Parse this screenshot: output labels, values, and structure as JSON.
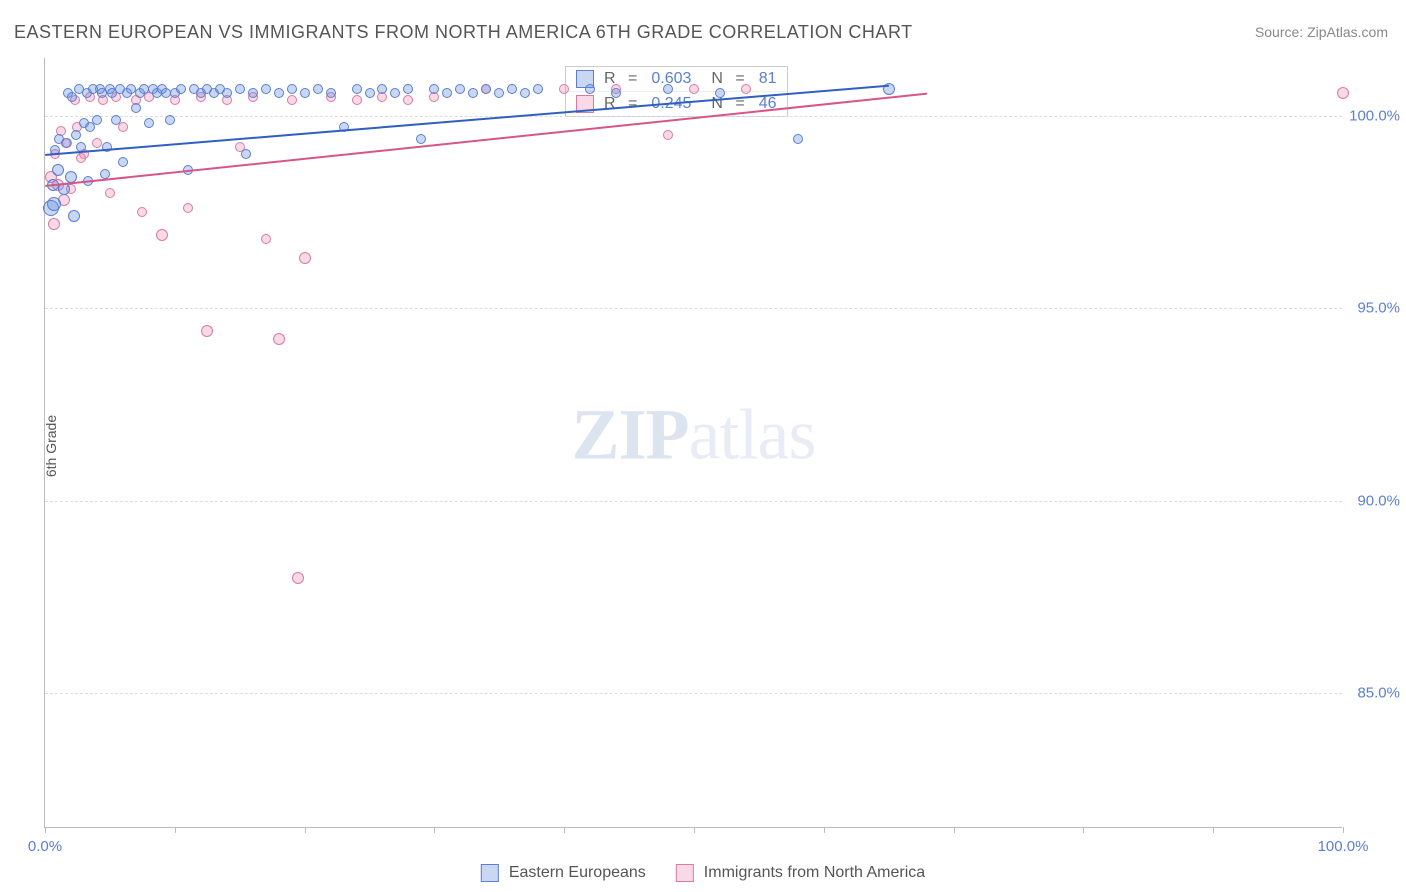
{
  "title": "EASTERN EUROPEAN VS IMMIGRANTS FROM NORTH AMERICA 6TH GRADE CORRELATION CHART",
  "source": "Source: ZipAtlas.com",
  "ylabel": "6th Grade",
  "watermark": {
    "bold": "ZIP",
    "thin": "atlas"
  },
  "xlim": [
    0,
    100
  ],
  "ylim": [
    81.5,
    101.5
  ],
  "yticks": [
    {
      "v": 100,
      "label": "100.0%"
    },
    {
      "v": 95,
      "label": "95.0%"
    },
    {
      "v": 90,
      "label": "90.0%"
    },
    {
      "v": 85,
      "label": "85.0%"
    }
  ],
  "xticks_major": [
    0,
    100
  ],
  "xticks_minor": [
    10,
    20,
    30,
    40,
    50,
    60,
    70,
    80,
    90
  ],
  "xtick_labels": {
    "0": "0.0%",
    "100": "100.0%"
  },
  "series": [
    {
      "id": "eastern-europeans",
      "label": "Eastern Europeans",
      "fill": "rgba(100,140,220,0.35)",
      "stroke": "#5b7fd1",
      "line_color": "#2f5fc4",
      "R": "0.603",
      "N": "81",
      "trend": {
        "x1": 0,
        "y1": 99.0,
        "x2": 65,
        "y2": 100.8
      },
      "points": [
        [
          0.5,
          97.6,
          16
        ],
        [
          0.6,
          98.2,
          12
        ],
        [
          0.7,
          97.7,
          14
        ],
        [
          0.8,
          99.1,
          10
        ],
        [
          1.0,
          98.6,
          12
        ],
        [
          1.1,
          99.4,
          10
        ],
        [
          1.5,
          98.1,
          12
        ],
        [
          1.6,
          99.3,
          10
        ],
        [
          1.8,
          100.6,
          10
        ],
        [
          2.0,
          98.4,
          12
        ],
        [
          2.1,
          100.5,
          10
        ],
        [
          2.2,
          97.4,
          12
        ],
        [
          2.4,
          99.5,
          10
        ],
        [
          2.6,
          100.7,
          10
        ],
        [
          2.8,
          99.2,
          10
        ],
        [
          3.0,
          99.8,
          10
        ],
        [
          3.2,
          100.6,
          10
        ],
        [
          3.3,
          98.3,
          10
        ],
        [
          3.5,
          99.7,
          10
        ],
        [
          3.7,
          100.7,
          10
        ],
        [
          4.0,
          99.9,
          10
        ],
        [
          4.2,
          100.7,
          10
        ],
        [
          4.4,
          100.6,
          10
        ],
        [
          4.6,
          98.5,
          10
        ],
        [
          4.8,
          99.2,
          10
        ],
        [
          5.0,
          100.7,
          10
        ],
        [
          5.2,
          100.6,
          10
        ],
        [
          5.5,
          99.9,
          10
        ],
        [
          5.8,
          100.7,
          10
        ],
        [
          6.0,
          98.8,
          10
        ],
        [
          6.3,
          100.6,
          10
        ],
        [
          6.6,
          100.7,
          10
        ],
        [
          7.0,
          100.2,
          10
        ],
        [
          7.3,
          100.6,
          10
        ],
        [
          7.6,
          100.7,
          10
        ],
        [
          8.0,
          99.8,
          10
        ],
        [
          8.3,
          100.7,
          10
        ],
        [
          8.6,
          100.6,
          10
        ],
        [
          9.0,
          100.7,
          10
        ],
        [
          9.3,
          100.6,
          10
        ],
        [
          9.6,
          99.9,
          10
        ],
        [
          10.0,
          100.6,
          10
        ],
        [
          10.5,
          100.7,
          10
        ],
        [
          11.0,
          98.6,
          10
        ],
        [
          11.5,
          100.7,
          10
        ],
        [
          12.0,
          100.6,
          10
        ],
        [
          12.5,
          100.7,
          10
        ],
        [
          13.0,
          100.6,
          10
        ],
        [
          13.5,
          100.7,
          10
        ],
        [
          14.0,
          100.6,
          10
        ],
        [
          15.0,
          100.7,
          10
        ],
        [
          15.5,
          99.0,
          10
        ],
        [
          16.0,
          100.6,
          10
        ],
        [
          17.0,
          100.7,
          10
        ],
        [
          18.0,
          100.6,
          10
        ],
        [
          19.0,
          100.7,
          10
        ],
        [
          20.0,
          100.6,
          10
        ],
        [
          21.0,
          100.7,
          10
        ],
        [
          22.0,
          100.6,
          10
        ],
        [
          23.0,
          99.7,
          10
        ],
        [
          24.0,
          100.7,
          10
        ],
        [
          25.0,
          100.6,
          10
        ],
        [
          26.0,
          100.7,
          10
        ],
        [
          27.0,
          100.6,
          10
        ],
        [
          28.0,
          100.7,
          10
        ],
        [
          29.0,
          99.4,
          10
        ],
        [
          30.0,
          100.7,
          10
        ],
        [
          31.0,
          100.6,
          10
        ],
        [
          32.0,
          100.7,
          10
        ],
        [
          33.0,
          100.6,
          10
        ],
        [
          34.0,
          100.7,
          10
        ],
        [
          35.0,
          100.6,
          10
        ],
        [
          36.0,
          100.7,
          10
        ],
        [
          37.0,
          100.6,
          10
        ],
        [
          38.0,
          100.7,
          10
        ],
        [
          42.0,
          100.7,
          10
        ],
        [
          44.0,
          100.6,
          10
        ],
        [
          48.0,
          100.7,
          10
        ],
        [
          52.0,
          100.6,
          10
        ],
        [
          58.0,
          99.4,
          10
        ],
        [
          65.0,
          100.7,
          12
        ]
      ]
    },
    {
      "id": "immigrants-north-america",
      "label": "Immigrants from North America",
      "fill": "rgba(235,130,170,0.3)",
      "stroke": "#d87ba3",
      "line_color": "#d85588",
      "R": "0.245",
      "N": "46",
      "trend": {
        "x1": 0,
        "y1": 98.2,
        "x2": 68,
        "y2": 100.6
      },
      "points": [
        [
          0.5,
          98.4,
          12
        ],
        [
          0.7,
          97.2,
          12
        ],
        [
          0.8,
          99.0,
          10
        ],
        [
          1.0,
          98.2,
          12
        ],
        [
          1.2,
          99.6,
          10
        ],
        [
          1.5,
          97.8,
          12
        ],
        [
          1.7,
          99.3,
          10
        ],
        [
          2.0,
          98.1,
          10
        ],
        [
          2.3,
          100.4,
          10
        ],
        [
          2.5,
          99.7,
          10
        ],
        [
          2.8,
          98.9,
          10
        ],
        [
          3.0,
          99.0,
          10
        ],
        [
          3.5,
          100.5,
          10
        ],
        [
          4.0,
          99.3,
          10
        ],
        [
          4.5,
          100.4,
          10
        ],
        [
          5.0,
          98.0,
          10
        ],
        [
          5.5,
          100.5,
          10
        ],
        [
          6.0,
          99.7,
          10
        ],
        [
          7.0,
          100.4,
          10
        ],
        [
          7.5,
          97.5,
          10
        ],
        [
          8.0,
          100.5,
          10
        ],
        [
          9.0,
          96.9,
          12
        ],
        [
          10.0,
          100.4,
          10
        ],
        [
          11.0,
          97.6,
          10
        ],
        [
          12.0,
          100.5,
          10
        ],
        [
          12.5,
          94.4,
          12
        ],
        [
          14.0,
          100.4,
          10
        ],
        [
          15.0,
          99.2,
          10
        ],
        [
          16.0,
          100.5,
          10
        ],
        [
          17.0,
          96.8,
          10
        ],
        [
          18.0,
          94.2,
          12
        ],
        [
          19.0,
          100.4,
          10
        ],
        [
          20.0,
          96.3,
          12
        ],
        [
          22.0,
          100.5,
          10
        ],
        [
          24.0,
          100.4,
          10
        ],
        [
          26.0,
          100.5,
          10
        ],
        [
          28.0,
          100.4,
          10
        ],
        [
          30.0,
          100.5,
          10
        ],
        [
          34.0,
          100.7,
          10
        ],
        [
          40.0,
          100.7,
          10
        ],
        [
          44.0,
          100.7,
          10
        ],
        [
          48.0,
          99.5,
          10
        ],
        [
          50.0,
          100.7,
          10
        ],
        [
          54.0,
          100.7,
          10
        ],
        [
          19.5,
          88.0,
          12
        ],
        [
          100.0,
          100.6,
          12
        ]
      ]
    }
  ],
  "bottom_legend": [
    "Eastern Europeans",
    "Immigrants from North America"
  ],
  "stats_label": {
    "R": "R = ",
    "N": "N = "
  }
}
